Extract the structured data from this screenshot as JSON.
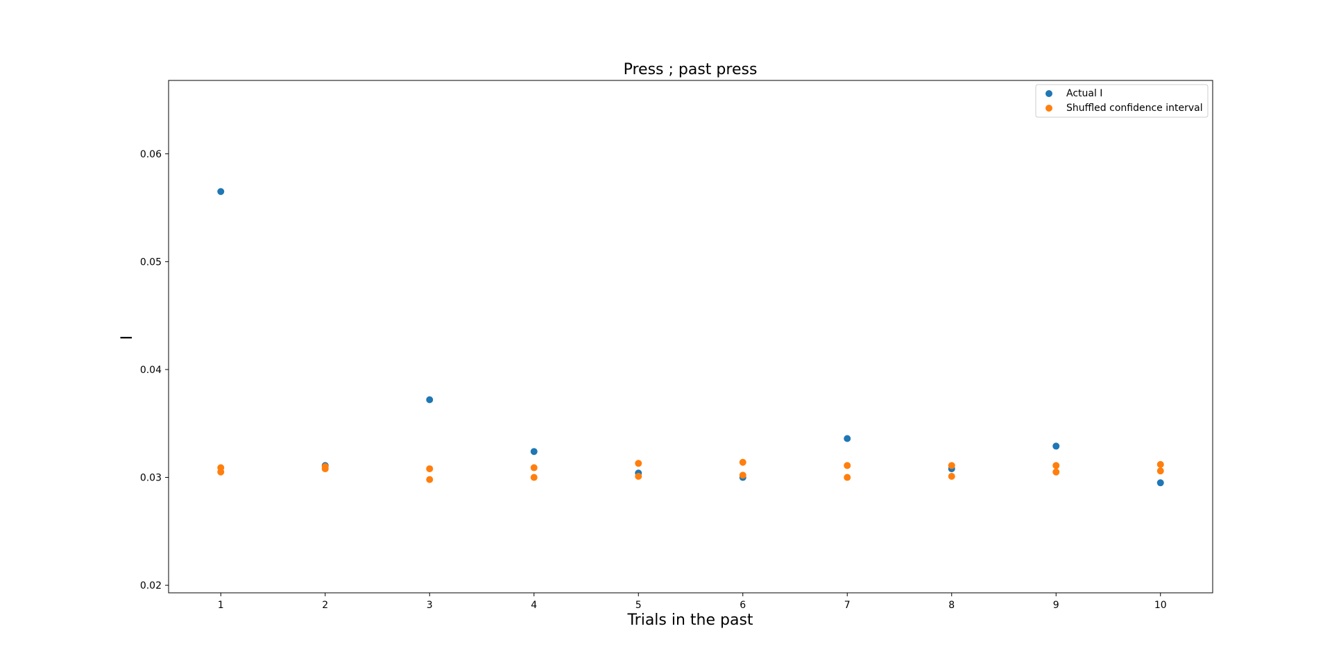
{
  "chart_data": {
    "type": "scatter",
    "title": "Press ; past press",
    "xlabel": "Trials in the past",
    "ylabel": "I",
    "xlim": [
      0.5,
      10.5
    ],
    "ylim": [
      0.0193,
      0.0668
    ],
    "x_ticks": [
      1,
      2,
      3,
      4,
      5,
      6,
      7,
      8,
      9,
      10
    ],
    "y_ticks": [
      0.02,
      0.03,
      0.04,
      0.05,
      0.06
    ],
    "y_tick_labels": [
      "0.02",
      "0.03",
      "0.04",
      "0.05",
      "0.06"
    ],
    "grid": false,
    "legend_position": "top-right",
    "series": [
      {
        "name": "Actual I",
        "color": "#1f77b4",
        "x": [
          1,
          2,
          3,
          4,
          5,
          6,
          7,
          8,
          9,
          10
        ],
        "y": [
          0.0565,
          0.0311,
          0.0372,
          0.0324,
          0.0304,
          0.03,
          0.0336,
          0.0308,
          0.0329,
          0.0295
        ]
      },
      {
        "name": "Shuffled confidence interval",
        "color": "#ff7f0e",
        "x": [
          1,
          1,
          2,
          2,
          3,
          3,
          4,
          4,
          5,
          5,
          6,
          6,
          7,
          7,
          8,
          8,
          9,
          9,
          10,
          10
        ],
        "y": [
          0.0305,
          0.0309,
          0.0308,
          0.031,
          0.0298,
          0.0308,
          0.03,
          0.0309,
          0.0301,
          0.0313,
          0.0302,
          0.0314,
          0.03,
          0.0311,
          0.0301,
          0.0311,
          0.0305,
          0.0311,
          0.0306,
          0.0312
        ]
      }
    ]
  }
}
